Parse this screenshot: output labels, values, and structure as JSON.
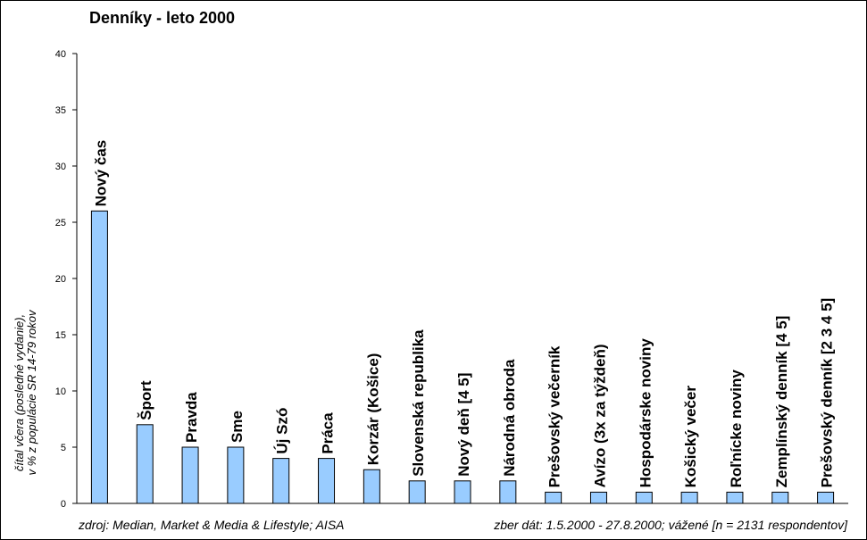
{
  "chart_data": {
    "type": "bar",
    "title": "Denníky - leto 2000",
    "ylabel_lines": [
      "čítal včera (posledné vydanie),",
      "v % z populácie SR 14-79 rokov"
    ],
    "ylim": [
      0,
      40
    ],
    "yticks": [
      0,
      5,
      10,
      15,
      20,
      25,
      30,
      35,
      40
    ],
    "grid": false,
    "legend": "none",
    "bar_color": "#99CCFF",
    "categories": [
      "Nový čas",
      "Šport",
      "Pravda",
      "Sme",
      "Új Szó",
      "Práca",
      "Korzár (Košice)",
      "Slovenská republika",
      "Nový deň [4 5]",
      "Národná obroda",
      "Prešovský večerník",
      "Avízo (3x za týždeň)",
      "Hospodárske noviny",
      "Košický večer",
      "Roľnícke noviny",
      "Zemplínský denník [4 5]",
      "Prešovský denník [2 3 4 5]"
    ],
    "values": [
      26,
      7,
      5,
      5,
      4,
      4,
      3,
      2,
      2,
      2,
      1,
      1,
      1,
      1,
      1,
      1,
      1
    ]
  },
  "footer": {
    "source": "zdroj: Median, Market & Media & Lifestyle; AISA",
    "collection": "zber dát: 1.5.2000 - 27.8.2000; vážené [n = 2131 respondentov]"
  }
}
